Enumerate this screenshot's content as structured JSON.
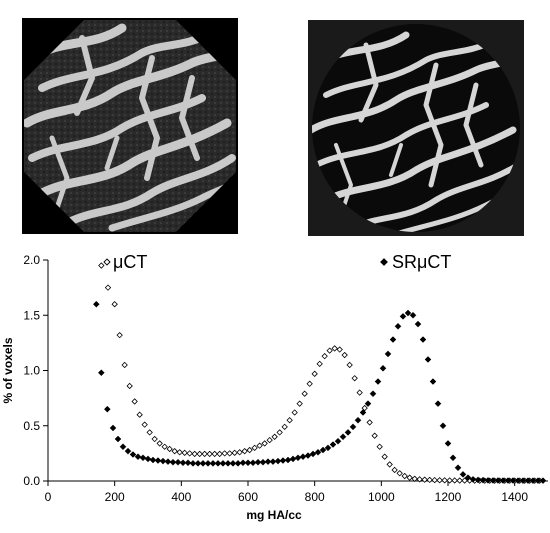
{
  "images": [
    {
      "name": "uCT scan cross-section"
    },
    {
      "name": "SRuCT scan cross-section"
    }
  ],
  "chart_data": {
    "type": "scatter",
    "xlabel": "mg HA/cc",
    "ylabel": "% of voxels",
    "xlim": [
      0,
      1500
    ],
    "ylim": [
      0,
      2.0
    ],
    "xticks": [
      0,
      200,
      400,
      600,
      800,
      1000,
      1200,
      1400
    ],
    "yticks": [
      0.0,
      0.5,
      1.0,
      1.5,
      2.0
    ],
    "ytick_labels": [
      "0.0",
      "0.5",
      "1.0",
      "1.5",
      "2.0"
    ],
    "grid": false,
    "series": [
      {
        "name": "μCT",
        "marker": "open-diamond",
        "color": "#000000",
        "x": [
          160,
          180,
          200,
          215,
          230,
          245,
          260,
          275,
          290,
          305,
          320,
          335,
          350,
          365,
          380,
          395,
          410,
          425,
          440,
          455,
          470,
          485,
          500,
          515,
          530,
          545,
          560,
          575,
          590,
          605,
          620,
          635,
          650,
          665,
          680,
          695,
          710,
          725,
          740,
          755,
          770,
          785,
          800,
          815,
          830,
          845,
          860,
          875,
          890,
          905,
          920,
          935,
          950,
          965,
          980,
          995,
          1010,
          1025,
          1040,
          1055,
          1070,
          1085,
          1100,
          1115,
          1130,
          1145,
          1160,
          1175,
          1190,
          1205,
          1220,
          1235,
          1250,
          1265,
          1280,
          1295,
          1310,
          1325,
          1340,
          1355,
          1370,
          1385,
          1400,
          1415,
          1430,
          1445,
          1460,
          1475
        ],
        "y": [
          1.95,
          1.75,
          1.6,
          1.32,
          1.05,
          0.86,
          0.72,
          0.6,
          0.51,
          0.44,
          0.38,
          0.34,
          0.31,
          0.29,
          0.27,
          0.26,
          0.255,
          0.25,
          0.245,
          0.245,
          0.245,
          0.245,
          0.245,
          0.245,
          0.25,
          0.25,
          0.255,
          0.26,
          0.27,
          0.28,
          0.3,
          0.32,
          0.34,
          0.37,
          0.4,
          0.44,
          0.49,
          0.55,
          0.62,
          0.7,
          0.79,
          0.88,
          0.97,
          1.06,
          1.13,
          1.18,
          1.2,
          1.19,
          1.14,
          1.05,
          0.93,
          0.8,
          0.66,
          0.53,
          0.41,
          0.31,
          0.22,
          0.15,
          0.1,
          0.07,
          0.045,
          0.03,
          0.02,
          0.015,
          0.012,
          0.01,
          0.008,
          0.007,
          0.006,
          0.005,
          0.005,
          0.004,
          0.004,
          0.004,
          0.003,
          0.003,
          0.003,
          0.003,
          0.003,
          0.003,
          0.003,
          0.003,
          0.003,
          0.003,
          0.003,
          0.003,
          0.003,
          0.003
        ]
      },
      {
        "name": "SRμCT",
        "marker": "filled-diamond",
        "color": "#000000",
        "x": [
          145,
          160,
          178,
          195,
          210,
          225,
          240,
          255,
          270,
          285,
          300,
          315,
          330,
          345,
          360,
          375,
          390,
          405,
          420,
          435,
          450,
          465,
          480,
          495,
          510,
          525,
          540,
          555,
          570,
          585,
          600,
          615,
          630,
          645,
          660,
          675,
          690,
          705,
          720,
          735,
          750,
          765,
          780,
          795,
          810,
          825,
          840,
          855,
          870,
          885,
          900,
          915,
          930,
          945,
          960,
          975,
          990,
          1005,
          1020,
          1035,
          1050,
          1065,
          1080,
          1095,
          1110,
          1125,
          1140,
          1155,
          1170,
          1185,
          1200,
          1215,
          1230,
          1245,
          1260,
          1275,
          1290,
          1305,
          1320,
          1335,
          1350,
          1365,
          1380,
          1395,
          1410,
          1425,
          1440,
          1455,
          1470,
          1485
        ],
        "y": [
          1.6,
          0.98,
          0.65,
          0.48,
          0.38,
          0.31,
          0.27,
          0.24,
          0.22,
          0.21,
          0.2,
          0.19,
          0.185,
          0.18,
          0.175,
          0.17,
          0.17,
          0.165,
          0.165,
          0.16,
          0.16,
          0.16,
          0.16,
          0.16,
          0.16,
          0.16,
          0.16,
          0.16,
          0.16,
          0.165,
          0.165,
          0.165,
          0.17,
          0.17,
          0.175,
          0.175,
          0.18,
          0.185,
          0.19,
          0.2,
          0.21,
          0.22,
          0.23,
          0.245,
          0.26,
          0.28,
          0.3,
          0.33,
          0.36,
          0.4,
          0.44,
          0.49,
          0.55,
          0.62,
          0.7,
          0.79,
          0.9,
          1.02,
          1.15,
          1.28,
          1.4,
          1.49,
          1.52,
          1.5,
          1.42,
          1.28,
          1.1,
          0.9,
          0.7,
          0.5,
          0.34,
          0.21,
          0.12,
          0.06,
          0.03,
          0.015,
          0.01,
          0.008,
          0.006,
          0.005,
          0.005,
          0.004,
          0.004,
          0.004,
          0.003,
          0.003,
          0.003,
          0.003,
          0.003,
          0.003
        ]
      }
    ]
  }
}
